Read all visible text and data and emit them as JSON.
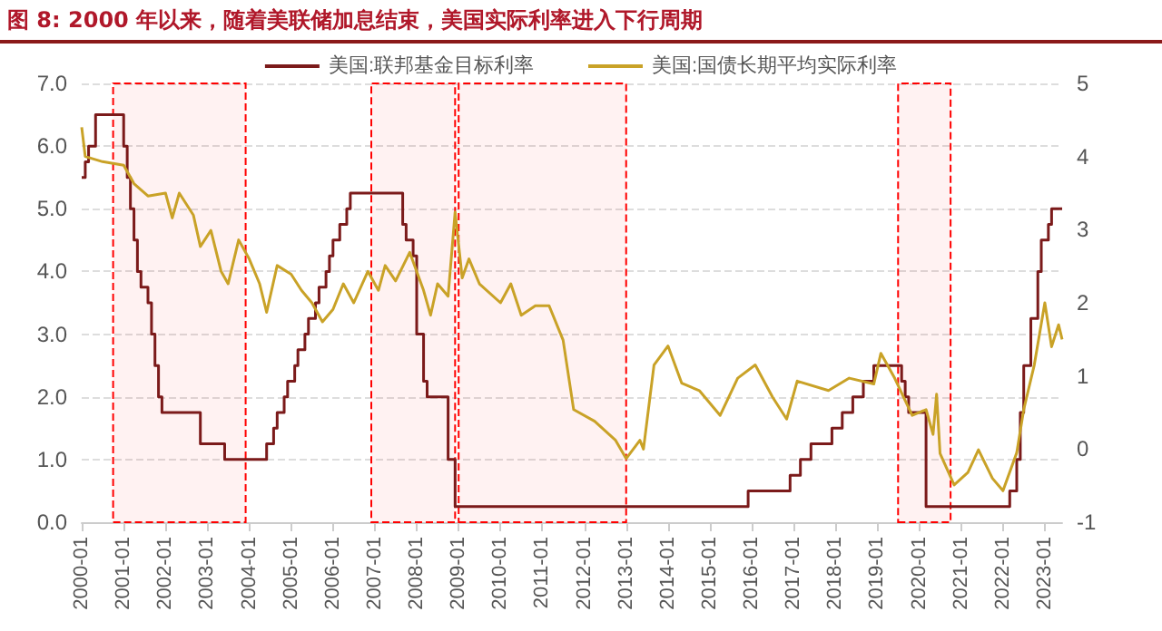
{
  "chart_data": {
    "type": "line",
    "title": "图 8:   2000 年以来，随着美联储加息结束，美国实际利率进入下行周期",
    "series": [
      {
        "name": "美国:联邦基金目标利率",
        "type": "step",
        "color": "#7b1a1a",
        "x": [
          "2000-01",
          "2000-02",
          "2000-03",
          "2000-05",
          "2001-01",
          "2001-02",
          "2001-03",
          "2001-04",
          "2001-05",
          "2001-06",
          "2001-08",
          "2001-09",
          "2001-10",
          "2001-11",
          "2001-12",
          "2002-11",
          "2003-06",
          "2004-06",
          "2004-08",
          "2004-09",
          "2004-11",
          "2004-12",
          "2005-02",
          "2005-03",
          "2005-05",
          "2005-06",
          "2005-08",
          "2005-09",
          "2005-11",
          "2005-12",
          "2006-01",
          "2006-03",
          "2006-05",
          "2006-06",
          "2007-09",
          "2007-10",
          "2007-12",
          "2008-01",
          "2008-03",
          "2008-04",
          "2008-10",
          "2008-12",
          "2015-12",
          "2016-12",
          "2017-03",
          "2017-06",
          "2017-12",
          "2018-03",
          "2018-06",
          "2018-09",
          "2018-12",
          "2019-08",
          "2019-09",
          "2019-10",
          "2020-03",
          "2022-03",
          "2022-05",
          "2022-06",
          "2022-07",
          "2022-09",
          "2022-11",
          "2022-12",
          "2023-02",
          "2023-03",
          "2023-06"
        ],
        "values": [
          5.5,
          5.75,
          6.0,
          6.5,
          6.0,
          5.5,
          5.0,
          4.5,
          4.0,
          3.75,
          3.5,
          3.0,
          2.5,
          2.0,
          1.75,
          1.25,
          1.0,
          1.25,
          1.5,
          1.75,
          2.0,
          2.25,
          2.5,
          2.75,
          3.0,
          3.25,
          3.5,
          3.75,
          4.0,
          4.25,
          4.5,
          4.75,
          5.0,
          5.25,
          4.75,
          4.5,
          4.25,
          3.0,
          2.25,
          2.0,
          1.0,
          0.25,
          0.5,
          0.75,
          1.0,
          1.25,
          1.5,
          1.75,
          2.0,
          2.25,
          2.5,
          2.25,
          2.0,
          1.75,
          0.25,
          0.5,
          1.0,
          1.75,
          2.5,
          3.25,
          4.0,
          4.5,
          4.75,
          5.0,
          5.0
        ]
      },
      {
        "name": "美国:国债长期平均实际利率",
        "type": "line",
        "axis": "y2",
        "color": "#c9a227",
        "x": [
          "2000-01",
          "2000-02",
          "2000-07",
          "2001-01",
          "2001-04",
          "2001-08",
          "2002-01",
          "2002-03",
          "2002-05",
          "2002-09",
          "2002-11",
          "2003-02",
          "2003-05",
          "2003-07",
          "2003-10",
          "2004-01",
          "2004-04",
          "2004-06",
          "2004-09",
          "2005-01",
          "2005-04",
          "2005-07",
          "2005-10",
          "2006-01",
          "2006-04",
          "2006-07",
          "2006-11",
          "2007-02",
          "2007-04",
          "2007-07",
          "2007-11",
          "2008-03",
          "2008-05",
          "2008-07",
          "2008-10",
          "2008-12",
          "2009-02",
          "2009-04",
          "2009-07",
          "2010-01",
          "2010-04",
          "2010-07",
          "2010-11",
          "2011-03",
          "2011-07",
          "2011-10",
          "2012-04",
          "2012-10",
          "2013-01",
          "2013-05",
          "2013-06",
          "2013-09",
          "2014-01",
          "2014-05",
          "2014-10",
          "2015-04",
          "2015-09",
          "2016-02",
          "2016-07",
          "2016-11",
          "2017-02",
          "2017-11",
          "2018-05",
          "2018-12",
          "2019-02",
          "2019-06",
          "2019-11",
          "2020-03",
          "2020-05",
          "2020-06",
          "2020-07",
          "2020-11",
          "2021-03",
          "2021-06",
          "2021-10",
          "2022-01",
          "2022-05",
          "2022-07",
          "2022-10",
          "2023-01",
          "2023-03",
          "2023-05",
          "2023-06"
        ],
        "values": [
          4.4,
          4.0,
          3.93,
          3.88,
          3.63,
          3.46,
          3.5,
          3.16,
          3.5,
          3.2,
          2.77,
          2.99,
          2.43,
          2.26,
          2.86,
          2.6,
          2.26,
          1.87,
          2.51,
          2.39,
          2.17,
          2.0,
          1.74,
          1.91,
          2.26,
          2.0,
          2.43,
          2.17,
          2.51,
          2.3,
          2.69,
          2.17,
          1.83,
          2.26,
          2.09,
          3.24,
          2.34,
          2.6,
          2.26,
          2.0,
          2.26,
          1.83,
          1.96,
          1.96,
          1.49,
          0.54,
          0.38,
          0.12,
          -0.13,
          0.12,
          0.0,
          1.15,
          1.41,
          0.9,
          0.8,
          0.46,
          0.97,
          1.15,
          0.71,
          0.41,
          0.93,
          0.8,
          0.97,
          0.89,
          1.31,
          0.97,
          0.46,
          0.54,
          0.2,
          0.75,
          -0.06,
          -0.49,
          -0.32,
          -0.01,
          -0.4,
          -0.57,
          -0.05,
          0.54,
          1.15,
          2.0,
          1.4,
          1.7,
          1.5
        ]
      }
    ],
    "xlim": [
      "2000-01",
      "2023-06"
    ],
    "xticks": [
      "2000-01",
      "2001-01",
      "2002-01",
      "2003-01",
      "2004-01",
      "2005-01",
      "2006-01",
      "2007-01",
      "2008-01",
      "2009-01",
      "2010-01",
      "2011-01",
      "2012-01",
      "2013-01",
      "2014-01",
      "2015-01",
      "2016-01",
      "2017-01",
      "2018-01",
      "2019-01",
      "2020-01",
      "2021-01",
      "2022-01",
      "2023-01"
    ],
    "ylim": [
      0,
      7
    ],
    "yticks": [
      {
        "value": 0,
        "label": "0.0"
      },
      {
        "value": 1,
        "label": "1.0"
      },
      {
        "value": 2,
        "label": "2.0"
      },
      {
        "value": 3,
        "label": "3.0"
      },
      {
        "value": 4,
        "label": "4.0"
      },
      {
        "value": 5,
        "label": "5.0"
      },
      {
        "value": 6,
        "label": "6.0"
      },
      {
        "value": 7,
        "label": "7.0"
      }
    ],
    "y2lim": [
      -1,
      5
    ],
    "y2ticks": [
      -1,
      0,
      1,
      2,
      3,
      4,
      5
    ],
    "bands": [
      {
        "axis": "x",
        "from": "2000-10",
        "to": "2003-12",
        "color": "#ff0000"
      },
      {
        "axis": "x",
        "from": "2006-12",
        "to": "2008-12",
        "color": "#ff0000"
      },
      {
        "axis": "x",
        "from": "2009-01",
        "to": "2013-01",
        "color": "#ff0000"
      },
      {
        "axis": "x",
        "from": "2019-07",
        "to": "2020-10",
        "color": "#ff0000"
      }
    ],
    "grid": "y",
    "legend": "top"
  }
}
